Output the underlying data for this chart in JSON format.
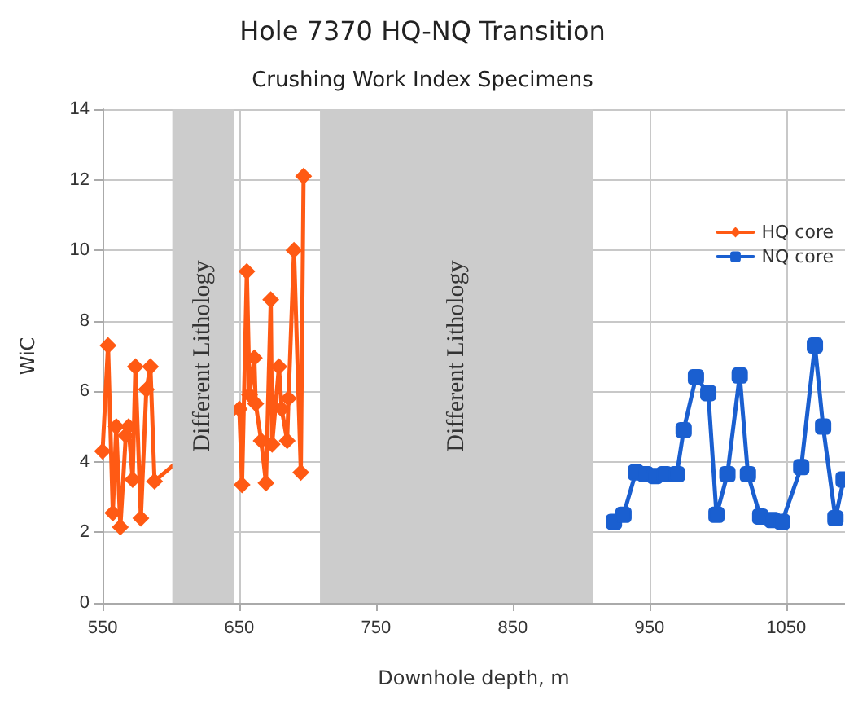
{
  "chart_data": {
    "type": "line",
    "title": "Hole 7370 HQ-NQ Transition",
    "subtitle": "Crushing Work Index Specimens",
    "xlabel": "Downhole depth, m",
    "ylabel": "WiC",
    "xlim": [
      550,
      1093
    ],
    "xticks": [
      550,
      650,
      750,
      850,
      950,
      1050
    ],
    "ylim": [
      0,
      14
    ],
    "yticks": [
      0,
      2,
      4,
      6,
      8,
      10,
      12,
      14
    ],
    "grid": true,
    "legend": "right",
    "bands": [
      {
        "axis": "x",
        "from": 601,
        "to": 646,
        "label": "Different Lithology",
        "color": "#cccccc"
      },
      {
        "axis": "x",
        "from": 709,
        "to": 909,
        "label": "Different Lithology",
        "color": "#cccccc"
      }
    ],
    "series": [
      {
        "name": "HQ core",
        "color": "#ff5a14",
        "marker": "diamond",
        "x": [
          550,
          554,
          557.5,
          560,
          563,
          567,
          569,
          572,
          574,
          578,
          582,
          585,
          588,
          650,
          652,
          655.5,
          657.5,
          661,
          662,
          666,
          669.5,
          673,
          674,
          679,
          681,
          685,
          686,
          690,
          695,
          697
        ],
        "values": [
          4.3,
          7.3,
          2.55,
          5.0,
          2.15,
          4.75,
          5.0,
          3.5,
          6.7,
          2.4,
          6.05,
          6.7,
          3.45,
          5.5,
          3.35,
          9.4,
          5.9,
          6.95,
          5.65,
          4.6,
          3.4,
          8.6,
          4.5,
          6.7,
          5.5,
          4.6,
          5.8,
          10.0,
          3.7,
          12.1
        ]
      },
      {
        "name": "NQ core",
        "color": "#1a5fd0",
        "marker": "square",
        "x": [
          924,
          931,
          940,
          947,
          954,
          961,
          970,
          975,
          984,
          993,
          999,
          1007,
          1016,
          1022,
          1031,
          1040,
          1047,
          1061,
          1071,
          1077,
          1086,
          1092
        ],
        "values": [
          2.3,
          2.5,
          3.7,
          3.65,
          3.6,
          3.65,
          3.65,
          4.9,
          6.4,
          5.95,
          2.5,
          3.65,
          6.45,
          3.65,
          2.45,
          2.35,
          2.3,
          3.85,
          7.3,
          5.0,
          2.4,
          3.5
        ]
      }
    ]
  }
}
